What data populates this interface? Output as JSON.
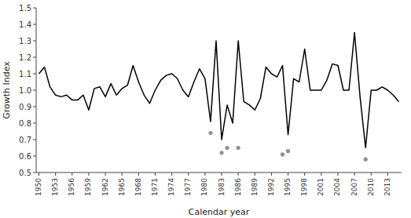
{
  "chart_data": {
    "type": "line",
    "x_label": "Calendar year",
    "y_label": "Growth Index",
    "x": [
      1950,
      1951,
      1952,
      1953,
      1954,
      1955,
      1956,
      1957,
      1958,
      1959,
      1960,
      1961,
      1962,
      1963,
      1964,
      1965,
      1966,
      1967,
      1968,
      1969,
      1970,
      1971,
      1972,
      1973,
      1974,
      1975,
      1976,
      1977,
      1978,
      1979,
      1980,
      1981,
      1982,
      1983,
      1984,
      1985,
      1986,
      1987,
      1988,
      1989,
      1990,
      1991,
      1992,
      1993,
      1994,
      1995,
      1996,
      1997,
      1998,
      1999,
      2000,
      2001,
      2002,
      2003,
      2004,
      2005,
      2006,
      2007,
      2008,
      2009,
      2010,
      2011,
      2012,
      2013,
      2014,
      2015
    ],
    "series": [
      {
        "type": "line",
        "color": "#000000",
        "values": [
          1.1,
          1.14,
          1.02,
          0.97,
          0.96,
          0.97,
          0.94,
          0.94,
          0.97,
          0.88,
          1.01,
          1.02,
          0.96,
          1.04,
          0.97,
          1.01,
          1.03,
          1.15,
          1.05,
          0.97,
          0.92,
          1.0,
          1.06,
          1.09,
          1.1,
          1.07,
          1.0,
          0.96,
          1.05,
          1.13,
          1.07,
          0.81,
          1.3,
          0.7,
          0.91,
          0.8,
          1.3,
          0.93,
          0.91,
          0.88,
          0.95,
          1.14,
          1.1,
          1.08,
          1.15,
          0.73,
          1.07,
          1.05,
          1.25,
          1.0,
          1.0,
          1.0,
          1.06,
          1.16,
          1.15,
          1.0,
          1.0,
          1.35,
          0.96,
          0.65,
          1.0,
          1.0,
          1.02,
          1.0,
          0.97,
          0.93
        ]
      },
      {
        "type": "scatter",
        "color": "#909090",
        "x": [
          1981,
          1983,
          1984,
          1986,
          1994,
          1995,
          2009
        ],
        "values": [
          0.74,
          0.62,
          0.65,
          0.65,
          0.61,
          0.63,
          0.58
        ]
      }
    ],
    "xlim": [
      1949.5,
      2015.5
    ],
    "xticks": [
      1950,
      1953,
      1956,
      1959,
      1962,
      1965,
      1968,
      1971,
      1974,
      1977,
      1980,
      1983,
      1986,
      1989,
      1992,
      1995,
      1998,
      2001,
      2004,
      2007,
      2010,
      2013
    ],
    "ylim": [
      0.5,
      1.5
    ],
    "yticks": [
      0.5,
      0.6,
      0.7,
      0.8,
      0.9,
      {
        "value": 1.0,
        "label": "1.0"
      },
      1.1,
      1.2,
      1.3,
      1.4,
      1.5
    ]
  }
}
